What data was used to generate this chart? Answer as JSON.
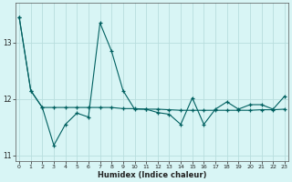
{
  "xlabel": "Humidex (Indice chaleur)",
  "x": [
    0,
    1,
    2,
    3,
    4,
    5,
    6,
    7,
    8,
    9,
    10,
    11,
    12,
    13,
    14,
    15,
    16,
    17,
    18,
    19,
    20,
    21,
    22,
    23
  ],
  "line_flat": [
    13.45,
    12.15,
    11.85,
    11.85,
    11.85,
    11.85,
    11.85,
    11.85,
    11.85,
    11.83,
    11.83,
    11.82,
    11.82,
    11.81,
    11.8,
    11.8,
    11.8,
    11.8,
    11.8,
    11.8,
    11.8,
    11.81,
    11.81,
    11.82
  ],
  "line_volatile": [
    13.45,
    12.15,
    11.85,
    11.18,
    11.55,
    11.75,
    11.68,
    13.35,
    12.85,
    12.15,
    11.82,
    11.82,
    11.76,
    11.73,
    11.55,
    12.02,
    11.55,
    11.82,
    11.95,
    11.82,
    11.9,
    11.9,
    11.82,
    12.05
  ],
  "line_color": "#006060",
  "bg_color": "#d8f5f5",
  "grid_color": "#b8dede",
  "ylim": [
    10.9,
    13.7
  ],
  "yticks": [
    11,
    12,
    13
  ],
  "xlim": [
    -0.3,
    23.3
  ]
}
